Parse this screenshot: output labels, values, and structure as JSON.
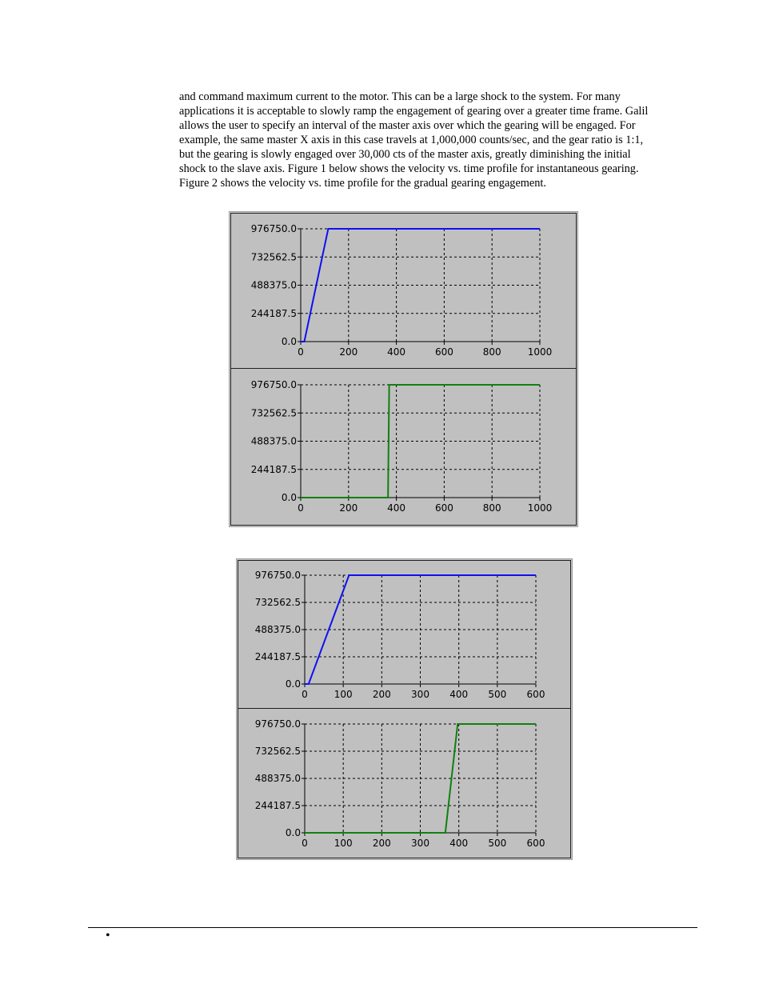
{
  "paragraph": {
    "lines": [
      "and command maximum current to the motor.  This can be a large shock to the system.  For many",
      "applications it is acceptable to slowly ramp the engagement of gearing over a greater time frame.  Galil",
      "allows the user to specify an interval of the master axis over which the gearing will be engaged.  For",
      "example, the same master X axis in this case travels at 1,000,000 counts/sec, and the gear ratio is 1:1,",
      "but the gearing is slowly engaged over 30,000 cts of the master axis, greatly diminishing the initial",
      "shock to the slave axis.  Figure 1 below shows the velocity vs. time profile for instantaneous gearing.",
      "Figure 2 shows the velocity vs. time profile for the gradual gearing engagement."
    ]
  },
  "footer": {
    "bullet": "•"
  },
  "chart_data": [
    {
      "type": "line",
      "figure": 1,
      "panel": "top",
      "color": "#1010f0",
      "xlim": [
        0,
        1000
      ],
      "ylim": [
        0,
        976750
      ],
      "xticks": [
        0,
        200,
        400,
        600,
        800,
        1000
      ],
      "yticks": [
        0,
        244187.5,
        488375,
        732562.5,
        976750
      ],
      "xtick_labels": [
        "0",
        "200",
        "400",
        "600",
        "800",
        "1000"
      ],
      "ytick_labels": [
        "0.0",
        "244187.5",
        "488375.0",
        "732562.5",
        "976750.0"
      ],
      "grid": true,
      "series": [
        {
          "x": [
            0,
            15,
            115,
            1000
          ],
          "y": [
            0,
            0,
            976750,
            976750
          ]
        }
      ]
    },
    {
      "type": "line",
      "figure": 1,
      "panel": "bottom",
      "color": "#108010",
      "xlim": [
        0,
        1000
      ],
      "ylim": [
        0,
        976750
      ],
      "xticks": [
        0,
        200,
        400,
        600,
        800,
        1000
      ],
      "yticks": [
        0,
        244187.5,
        488375,
        732562.5,
        976750
      ],
      "xtick_labels": [
        "0",
        "200",
        "400",
        "600",
        "800",
        "1000"
      ],
      "ytick_labels": [
        "0.0",
        "244187.5",
        "488375.0",
        "732562.5",
        "976750.0"
      ],
      "grid": true,
      "series": [
        {
          "x": [
            0,
            365,
            370,
            1000
          ],
          "y": [
            0,
            0,
            976750,
            976750
          ]
        }
      ]
    },
    {
      "type": "line",
      "figure": 2,
      "panel": "top",
      "color": "#1010f0",
      "xlim": [
        0,
        600
      ],
      "ylim": [
        0,
        976750
      ],
      "xticks": [
        0,
        100,
        200,
        300,
        400,
        500,
        600
      ],
      "yticks": [
        0,
        244187.5,
        488375,
        732562.5,
        976750
      ],
      "xtick_labels": [
        "0",
        "100",
        "200",
        "300",
        "400",
        "500",
        "600"
      ],
      "ytick_labels": [
        "0.0",
        "244187.5",
        "488375.0",
        "732562.5",
        "976750.0"
      ],
      "grid": true,
      "series": [
        {
          "x": [
            0,
            10,
            115,
            600
          ],
          "y": [
            0,
            0,
            976750,
            976750
          ]
        }
      ]
    },
    {
      "type": "line",
      "figure": 2,
      "panel": "bottom",
      "color": "#108010",
      "xlim": [
        0,
        600
      ],
      "ylim": [
        0,
        976750
      ],
      "xticks": [
        0,
        100,
        200,
        300,
        400,
        500,
        600
      ],
      "yticks": [
        0,
        244187.5,
        488375,
        732562.5,
        976750
      ],
      "xtick_labels": [
        "0",
        "100",
        "200",
        "300",
        "400",
        "500",
        "600"
      ],
      "ytick_labels": [
        "0.0",
        "244187.5",
        "488375.0",
        "732562.5",
        "976750.0"
      ],
      "grid": true,
      "series": [
        {
          "x": [
            0,
            365,
            397,
            600
          ],
          "y": [
            0,
            0,
            976750,
            976750
          ]
        }
      ]
    }
  ]
}
